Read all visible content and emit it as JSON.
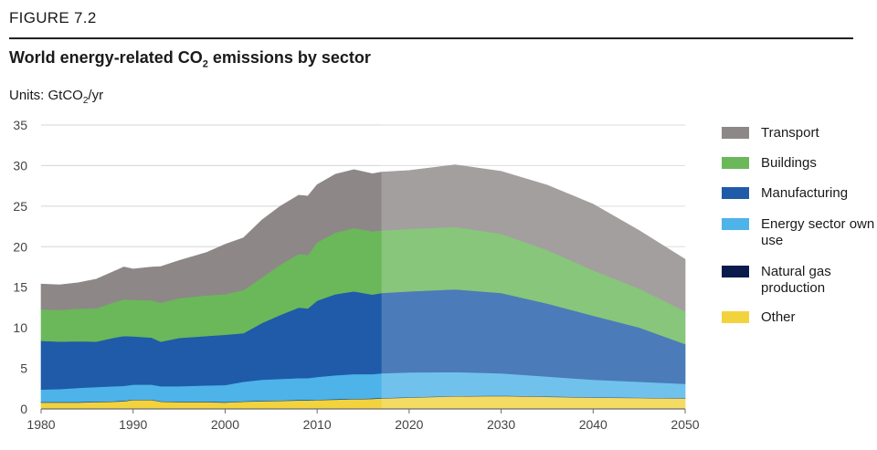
{
  "figure_label": "FIGURE 7.2",
  "title_main": "World energy-related CO",
  "title_sub": "2",
  "title_tail": " emissions by sector",
  "units_main": "Units: GtCO",
  "units_sub": "2",
  "units_tail": "/yr",
  "chart_data": {
    "type": "area",
    "stacked": true,
    "title": "World energy-related CO2 emissions by sector",
    "ylabel": "Units: GtCO2/yr",
    "xlim": [
      1980,
      2050
    ],
    "ylim": [
      0,
      35
    ],
    "xticks": [
      "1980",
      "1990",
      "2000",
      "2010",
      "2020",
      "2030",
      "2040",
      "2050"
    ],
    "yticks": [
      "0",
      "5",
      "10",
      "15",
      "20",
      "25",
      "30",
      "35"
    ],
    "history_end_year": 2017,
    "x": [
      1980,
      1982,
      1984,
      1986,
      1988,
      1989,
      1990,
      1992,
      1993,
      1995,
      1998,
      2000,
      2002,
      2004,
      2006,
      2008,
      2009,
      2010,
      2012,
      2014,
      2016,
      2017,
      2020,
      2025,
      2030,
      2035,
      2040,
      2045,
      2050
    ],
    "series": [
      {
        "name": "Other",
        "color": "#f2d33d",
        "values": [
          0.8,
          0.8,
          0.8,
          0.85,
          0.9,
          0.95,
          1.1,
          1.1,
          0.9,
          0.85,
          0.85,
          0.8,
          0.9,
          0.95,
          1.0,
          1.05,
          1.05,
          1.1,
          1.15,
          1.2,
          1.25,
          1.3,
          1.4,
          1.55,
          1.6,
          1.5,
          1.4,
          1.35,
          1.3
        ]
      },
      {
        "name": "Natural gas production",
        "color": "#0b1a4d",
        "values": [
          0.05,
          0.05,
          0.05,
          0.05,
          0.05,
          0.05,
          0.05,
          0.05,
          0.05,
          0.05,
          0.05,
          0.05,
          0.05,
          0.05,
          0.05,
          0.05,
          0.05,
          0.05,
          0.05,
          0.05,
          0.05,
          0.05,
          0.05,
          0.05,
          0.05,
          0.05,
          0.05,
          0.05,
          0.05
        ]
      },
      {
        "name": "Energy sector own use",
        "color": "#4db3e8",
        "values": [
          1.55,
          1.6,
          1.75,
          1.8,
          1.85,
          1.85,
          1.85,
          1.85,
          1.85,
          1.9,
          2.0,
          2.1,
          2.4,
          2.6,
          2.65,
          2.7,
          2.7,
          2.8,
          2.95,
          3.05,
          3.0,
          3.05,
          3.05,
          2.95,
          2.75,
          2.45,
          2.15,
          1.95,
          1.75
        ]
      },
      {
        "name": "Manufacturing",
        "color": "#1f5ba8",
        "values": [
          6.0,
          5.85,
          5.75,
          5.6,
          6.0,
          6.15,
          5.95,
          5.8,
          5.5,
          5.95,
          6.1,
          6.2,
          6.0,
          7.0,
          7.9,
          8.7,
          8.6,
          9.4,
          10.0,
          10.2,
          9.8,
          9.9,
          10.0,
          10.2,
          9.9,
          9.0,
          7.9,
          6.7,
          4.9
        ]
      },
      {
        "name": "Buildings",
        "color": "#6ab85a",
        "values": [
          3.9,
          3.9,
          4.0,
          4.1,
          4.4,
          4.5,
          4.5,
          4.6,
          4.8,
          4.9,
          5.0,
          5.0,
          5.3,
          5.6,
          6.2,
          6.6,
          6.6,
          7.2,
          7.6,
          7.8,
          7.8,
          7.7,
          7.7,
          7.7,
          7.3,
          6.6,
          5.6,
          4.8,
          4.05
        ]
      },
      {
        "name": "Transport",
        "color": "#8e8787",
        "values": [
          3.1,
          3.1,
          3.2,
          3.6,
          3.8,
          4.0,
          3.8,
          4.1,
          4.45,
          4.65,
          5.3,
          6.15,
          6.45,
          7.1,
          7.2,
          7.25,
          7.25,
          7.1,
          7.2,
          7.2,
          7.1,
          7.2,
          7.2,
          7.65,
          7.7,
          8.0,
          8.15,
          7.15,
          6.4
        ]
      }
    ]
  },
  "legend": [
    {
      "label": "Transport",
      "color": "#8e8787"
    },
    {
      "label": "Buildings",
      "color": "#6ab85a"
    },
    {
      "label": "Manufacturing",
      "color": "#1f5ba8"
    },
    {
      "label": "Energy sector own use",
      "color": "#4db3e8"
    },
    {
      "label": "Natural gas production",
      "color": "#0b1a4d"
    },
    {
      "label": "Other",
      "color": "#f2d33d"
    }
  ]
}
